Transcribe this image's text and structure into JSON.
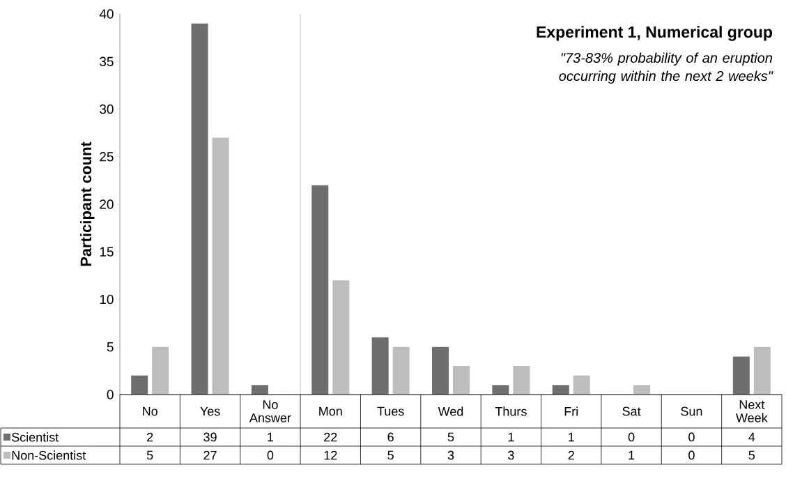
{
  "chart_data": {
    "type": "bar",
    "title": "Experiment 1, Numerical group",
    "subtitle": "\"73-83% probability of an eruption occurring within the next 2 weeks\"",
    "ylabel": "Participant count",
    "categories": [
      "No",
      "Yes",
      "No Answer",
      "Mon",
      "Tues",
      "Wed",
      "Thurs",
      "Fri",
      "Sat",
      "Sun",
      "Next Week"
    ],
    "series": [
      {
        "name": "Scientist",
        "color": "#6e6e6e",
        "values": [
          2,
          39,
          1,
          22,
          6,
          5,
          1,
          1,
          0,
          0,
          4
        ]
      },
      {
        "name": "Non-Scientist",
        "color": "#bdbdbd",
        "values": [
          5,
          27,
          0,
          12,
          5,
          3,
          3,
          2,
          1,
          0,
          5
        ]
      }
    ],
    "ylim": [
      0,
      40
    ],
    "yticks": [
      0,
      5,
      10,
      15,
      20,
      25,
      30,
      35,
      40
    ],
    "data_labels": true,
    "legend": "bottom"
  }
}
